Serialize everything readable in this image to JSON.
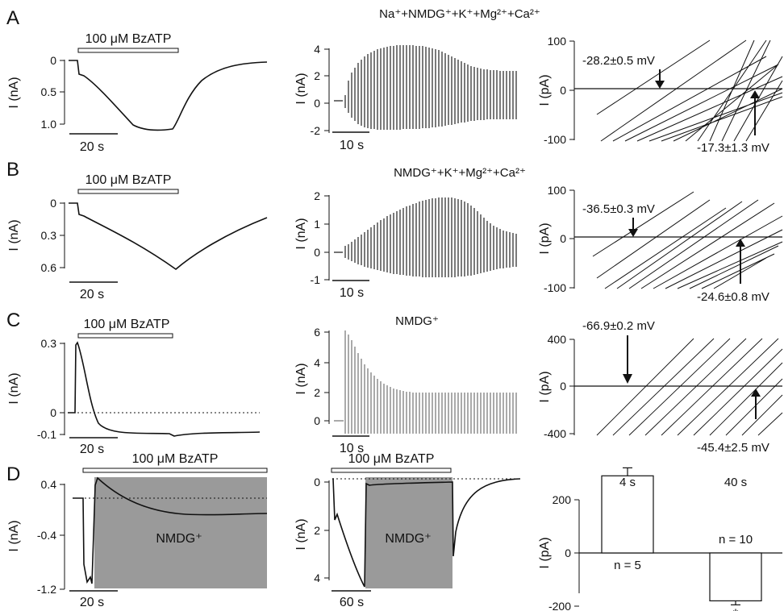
{
  "figure": {
    "rows": [
      {
        "panel_label": "A",
        "left": {
          "bar_label": "100 μM BzATP",
          "ylabel": "I (nA)",
          "yticks": [
            "0",
            "0.5",
            "1.0"
          ],
          "scalebar": "20 s"
        },
        "middle": {
          "title": "Na⁺+NMDG⁺+K⁺+Mg²⁺+Ca²⁺",
          "ylabel": "I (nA)",
          "yticks": [
            "4",
            "2",
            "0",
            "-2"
          ],
          "scalebar": "10 s"
        },
        "right": {
          "ylabel": "I (pA)",
          "yticks": [
            "100",
            "0",
            "-100"
          ],
          "annotation_left": "-28.2±0.5 mV",
          "annotation_right": "-17.3±1.3 mV"
        }
      },
      {
        "panel_label": "B",
        "left": {
          "bar_label": "100 μM BzATP",
          "ylabel": "I (nA)",
          "yticks": [
            "0",
            "0.3",
            "0.6"
          ],
          "scalebar": "20 s"
        },
        "middle": {
          "title": "NMDG⁺+K⁺+Mg²⁺+Ca²⁺",
          "ylabel": "I (nA)",
          "yticks": [
            "2",
            "1",
            "0",
            "-1"
          ],
          "scalebar": "10 s"
        },
        "right": {
          "ylabel": "I (pA)",
          "yticks": [
            "100",
            "0",
            "-100"
          ],
          "annotation_left": "-36.5±0.3 mV",
          "annotation_right": "-24.6±0.8 mV"
        }
      },
      {
        "panel_label": "C",
        "left": {
          "bar_label": "100 μM BzATP",
          "ylabel": "I (nA)",
          "yticks": [
            "0.3",
            "0",
            "-0.1"
          ],
          "scalebar": "20 s"
        },
        "middle": {
          "title": "NMDG⁺",
          "ylabel": "I (nA)",
          "yticks": [
            "6",
            "4",
            "2",
            "0"
          ],
          "scalebar": "10 s"
        },
        "right": {
          "ylabel": "I (pA)",
          "yticks": [
            "400",
            "0",
            "-400"
          ],
          "annotation_left": "-66.9±0.2 mV",
          "annotation_right": "-45.4±2.5 mV"
        }
      },
      {
        "panel_label": "D",
        "left": {
          "bar_label": "100 μM BzATP",
          "ylabel": "I (nA)",
          "yticks": [
            "0.4",
            "-0.4",
            "-1.2"
          ],
          "scalebar": "20 s",
          "shade_label": "NMDG⁺"
        },
        "middle": {
          "bar_label": "100 μM BzATP",
          "ylabel": "I (nA)",
          "yticks": [
            "0",
            "2",
            "4"
          ],
          "scalebar": "60 s",
          "shade_label": "NMDG⁺"
        }
      }
    ]
  },
  "chart_data": {
    "type": "bar",
    "categories": [
      "4 s",
      "40 s"
    ],
    "values": [
      290,
      -180
    ],
    "errors": [
      30,
      15
    ],
    "n_labels": [
      "n = 5",
      "n = 10"
    ],
    "significance": [
      "",
      "*"
    ],
    "ylabel": "I (pA)",
    "ylim": [
      -200,
      400
    ],
    "yticks": [
      "200",
      "0",
      "-200"
    ]
  }
}
